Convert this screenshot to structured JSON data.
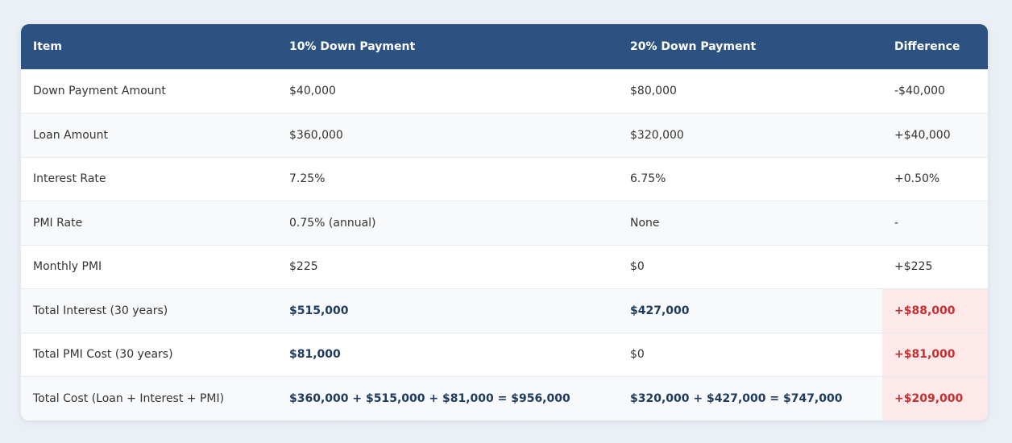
{
  "table": {
    "headers": [
      "Item",
      "10% Down Payment",
      "20% Down Payment",
      "Difference"
    ],
    "rows": [
      {
        "item": "Down Payment Amount",
        "ten": "$40,000",
        "twenty": "$80,000",
        "diff": "-$40,000"
      },
      {
        "item": "Loan Amount",
        "ten": "$360,000",
        "twenty": "$320,000",
        "diff": "+$40,000"
      },
      {
        "item": "Interest Rate",
        "ten": "7.25%",
        "twenty": "6.75%",
        "diff": "+0.50%"
      },
      {
        "item": "PMI Rate",
        "ten": "0.75% (annual)",
        "twenty": "None",
        "diff": "-"
      },
      {
        "item": "Monthly PMI",
        "ten": "$225",
        "twenty": "$0",
        "diff": "+$225"
      },
      {
        "item": "Total Interest (30 years)",
        "ten": "$515,000",
        "twenty": "$427,000",
        "diff": "+$88,000"
      },
      {
        "item": "Total PMI Cost (30 years)",
        "ten": "$81,000",
        "twenty": "$0",
        "diff": "+$81,000"
      },
      {
        "item": "Total Cost (Loan + Interest + PMI)",
        "ten": "$360,000 + $515,000 + $81,000 = $956,000",
        "twenty": "$320,000 + $427,000 = $747,000",
        "diff": "+$209,000"
      }
    ]
  },
  "colors": {
    "header_bg": "#2c5282",
    "highlight_bg": "#fde8ea",
    "highlight_text": "#c53030",
    "emphasis_text": "#1f3a5f"
  }
}
